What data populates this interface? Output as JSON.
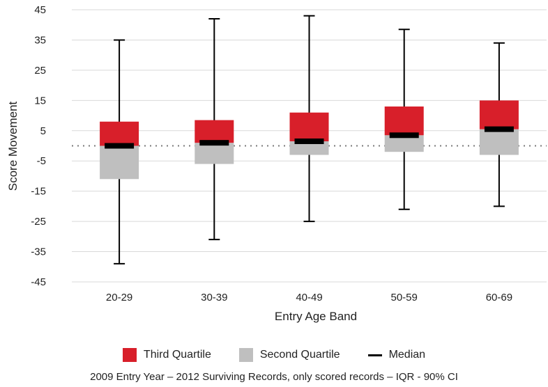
{
  "chart_data": {
    "type": "boxplot",
    "xlabel": "Entry Age Band",
    "ylabel": "Score Movement",
    "ylim": [
      -45,
      45
    ],
    "yticks": [
      45,
      35,
      25,
      15,
      5,
      -5,
      -15,
      -25,
      -35,
      -45
    ],
    "grid": true,
    "reference_line": 0,
    "categories": [
      "20-29",
      "30-39",
      "40-49",
      "50-59",
      "60-69"
    ],
    "boxes": [
      {
        "category": "20-29",
        "whisker_low": -39,
        "q1": -11,
        "median": 0,
        "q3": 8,
        "whisker_high": 35
      },
      {
        "category": "30-39",
        "whisker_low": -31,
        "q1": -6,
        "median": 1,
        "q3": 8.5,
        "whisker_high": 42
      },
      {
        "category": "40-49",
        "whisker_low": -25,
        "q1": -3,
        "median": 1.5,
        "q3": 11,
        "whisker_high": 43
      },
      {
        "category": "50-59",
        "whisker_low": -21,
        "q1": -2,
        "median": 3.5,
        "q3": 13,
        "whisker_high": 38.5
      },
      {
        "category": "60-69",
        "whisker_low": -20,
        "q1": -3,
        "median": 5.5,
        "q3": 15,
        "whisker_high": 34
      }
    ],
    "colors": {
      "third_quartile": "#d81f2a",
      "second_quartile": "#bfbfbf",
      "median": "#000000",
      "whisker": "#000000",
      "grid": "#d9d9d9",
      "reference": "#777777"
    },
    "legend": {
      "position": "bottom",
      "items": [
        {
          "label": "Third Quartile",
          "swatch": "box",
          "color": "#d81f2a"
        },
        {
          "label": "Second Quartile",
          "swatch": "box",
          "color": "#bfbfbf"
        },
        {
          "label": "Median",
          "swatch": "line",
          "color": "#000000"
        }
      ]
    },
    "caption": "2009 Entry Year – 2012 Surviving Records, only scored records – IQR - 90% CI"
  }
}
